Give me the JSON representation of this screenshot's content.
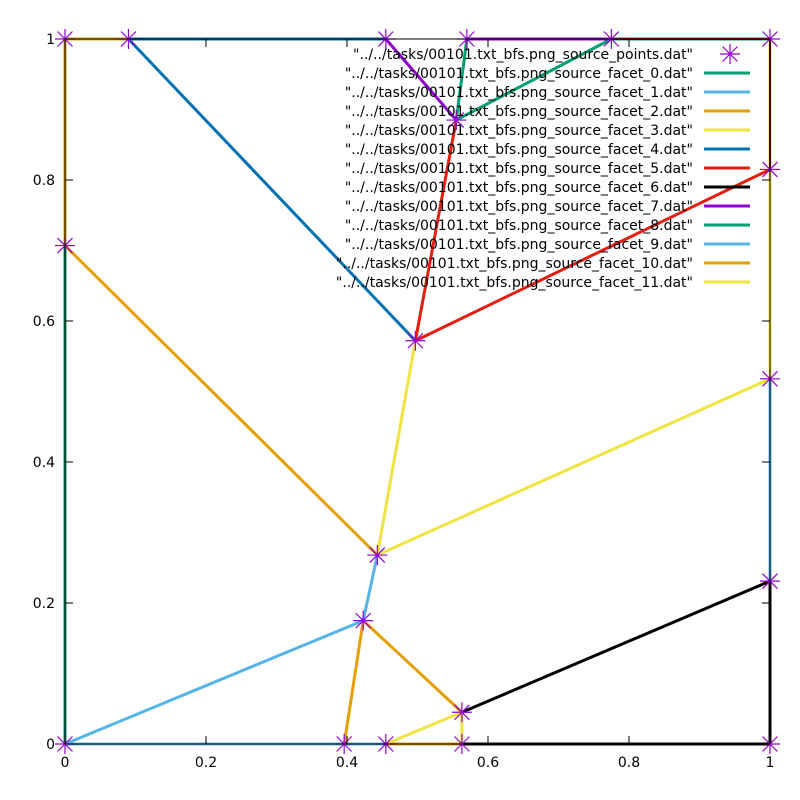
{
  "chart_data": {
    "type": "line",
    "title": "",
    "xlabel": "",
    "ylabel": "",
    "xlim": [
      0,
      1
    ],
    "ylim": [
      0,
      1
    ],
    "x_ticks": [
      "0",
      "0.2",
      "0.4",
      "0.6",
      "0.8",
      "1"
    ],
    "x_tick_values": [
      0,
      0.2,
      0.4,
      0.6,
      0.8,
      1
    ],
    "y_ticks": [
      "0",
      "0.2",
      "0.4",
      "0.6",
      "0.8",
      "1"
    ],
    "y_tick_values": [
      0,
      0.2,
      0.4,
      0.6,
      0.8,
      1
    ],
    "grid": false,
    "legend_position": "top-right",
    "points_series": {
      "name": "\"../../tasks/00101.txt_bfs.png_source_points.dat\"",
      "color": "#9400d3",
      "marker": "asterisk",
      "points": [
        [
          0,
          1
        ],
        [
          0.09,
          1
        ],
        [
          0.455,
          1
        ],
        [
          0.57,
          1
        ],
        [
          0.775,
          1
        ],
        [
          1,
          1
        ],
        [
          1,
          0.815
        ],
        [
          0.555,
          0.885
        ],
        [
          0.497,
          0.572
        ],
        [
          0,
          0.707
        ],
        [
          1,
          0.518
        ],
        [
          0.443,
          0.268
        ],
        [
          0.423,
          0.175
        ],
        [
          1,
          0.231
        ],
        [
          0.563,
          0.045
        ],
        [
          0,
          0
        ],
        [
          0.396,
          0
        ],
        [
          0.455,
          0
        ],
        [
          0.563,
          0
        ],
        [
          1,
          0
        ]
      ]
    },
    "series": [
      {
        "name": "\"../../tasks/00101.txt_bfs.png_source_facet_0.dat\"",
        "color": "#009e73",
        "segments": [
          [
            [
              0.555,
              0.885
            ],
            [
              0.775,
              1
            ]
          ],
          [
            [
              0.555,
              0.885
            ],
            [
              0.57,
              1
            ]
          ],
          [
            [
              0,
              0
            ],
            [
              0,
              1
            ]
          ]
        ]
      },
      {
        "name": "\"../../tasks/00101.txt_bfs.png_source_facet_1.dat\"",
        "color": "#56b4e9",
        "segments": [
          [
            [
              0,
              0
            ],
            [
              0.423,
              0.175
            ]
          ],
          [
            [
              0.423,
              0.175
            ],
            [
              0.443,
              0.268
            ]
          ],
          [
            [
              1,
              0.518
            ],
            [
              1,
              0.231
            ]
          ],
          [
            [
              0,
              0
            ],
            [
              0.396,
              0
            ]
          ]
        ]
      },
      {
        "name": "\"../../tasks/00101.txt_bfs.png_source_facet_2.dat\"",
        "color": "#e69f00",
        "segments": [
          [
            [
              0,
              0.707
            ],
            [
              0.443,
              0.268
            ]
          ],
          [
            [
              0.423,
              0.175
            ],
            [
              0.563,
              0.045
            ]
          ],
          [
            [
              0.423,
              0.175
            ],
            [
              0.396,
              0
            ]
          ],
          [
            [
              0,
              1
            ],
            [
              0.09,
              1
            ]
          ],
          [
            [
              0,
              1
            ],
            [
              0,
              0.707
            ]
          ]
        ]
      },
      {
        "name": "\"../../tasks/00101.txt_bfs.png_source_facet_3.dat\"",
        "color": "#f0e442",
        "segments": [
          [
            [
              0.443,
              0.268
            ],
            [
              0.497,
              0.572
            ]
          ],
          [
            [
              0.443,
              0.268
            ],
            [
              1,
              0.518
            ]
          ],
          [
            [
              0.455,
              0
            ],
            [
              0.563,
              0.045
            ]
          ],
          [
            [
              1,
              0.815
            ],
            [
              1,
              0.518
            ]
          ],
          [
            [
              0.563,
              0.045
            ],
            [
              0.563,
              0
            ]
          ]
        ]
      },
      {
        "name": "\"../../tasks/00101.txt_bfs.png_source_facet_4.dat\"",
        "color": "#0072b2",
        "segments": [
          [
            [
              0.09,
              1
            ],
            [
              0.497,
              0.572
            ]
          ],
          [
            [
              0.09,
              1
            ],
            [
              0.455,
              1
            ]
          ]
        ]
      },
      {
        "name": "\"../../tasks/00101.txt_bfs.png_source_facet_5.dat\"",
        "color": "#e51e10",
        "segments": [
          [
            [
              0.497,
              0.572
            ],
            [
              0.555,
              0.885
            ]
          ],
          [
            [
              0.497,
              0.572
            ],
            [
              1,
              0.815
            ]
          ]
        ]
      },
      {
        "name": "\"../../tasks/00101.txt_bfs.png_source_facet_6.dat\"",
        "color": "#000000",
        "segments": [
          [
            [
              0.563,
              0.045
            ],
            [
              1,
              0.231
            ]
          ],
          [
            [
              1,
              0.231
            ],
            [
              1,
              0
            ]
          ],
          [
            [
              0.563,
              0
            ],
            [
              1,
              0
            ]
          ]
        ]
      },
      {
        "name": "\"../../tasks/00101.txt_bfs.png_source_facet_7.dat\"",
        "color": "#9400d3",
        "segments": [
          [
            [
              0.455,
              1
            ],
            [
              0.555,
              0.885
            ]
          ],
          [
            [
              0.57,
              1
            ],
            [
              0.775,
              1
            ]
          ]
        ]
      },
      {
        "name": "\"../../tasks/00101.txt_bfs.png_source_facet_8.dat\"",
        "color": "#009e73",
        "segments": [
          [
            [
              0.775,
              1
            ],
            [
              1,
              1
            ]
          ]
        ]
      },
      {
        "name": "\"../../tasks/00101.txt_bfs.png_source_facet_9.dat\"",
        "color": "#56b4e9",
        "segments": [
          [
            [
              0.396,
              0
            ],
            [
              0.455,
              0
            ]
          ]
        ]
      },
      {
        "name": "\"../../tasks/00101.txt_bfs.png_source_facet_10.dat\"",
        "color": "#e69f00",
        "segments": [
          [
            [
              0.455,
              0
            ],
            [
              0.563,
              0
            ]
          ]
        ]
      },
      {
        "name": "\"../../tasks/00101.txt_bfs.png_source_facet_11.dat\"",
        "color": "#f0e442",
        "segments": [
          [
            [
              1,
              0.815
            ],
            [
              1,
              1
            ]
          ]
        ]
      }
    ],
    "extra_segments": [
      {
        "color": "#8b0000",
        "segments": [
          [
            [
              0.775,
              1
            ],
            [
              1,
              1
            ]
          ],
          [
            [
              1,
              1
            ],
            [
              1,
              0.815
            ]
          ]
        ]
      }
    ]
  }
}
